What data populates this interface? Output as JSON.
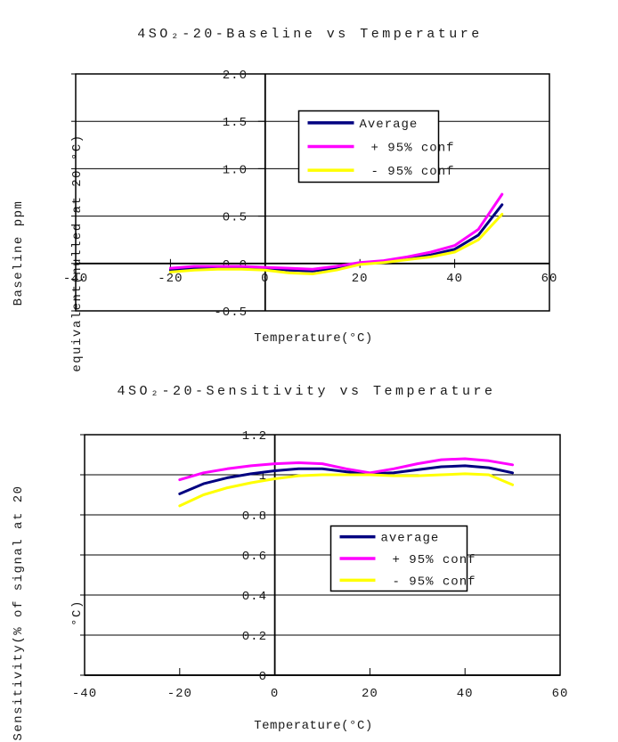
{
  "page": {
    "background": "#ffffff",
    "text_color": "#000000"
  },
  "chart_data": [
    {
      "id": "baseline",
      "type": "line",
      "title": "4SO₂-20-Baseline vs Temperature",
      "xlabel": "Temperature(°C)",
      "ylabel": "Baseline ppm equivalent(nulled at 20 °C)",
      "ylabel_lines": [
        "Baseline ppm",
        "equivalent(nulled at 20 °C)"
      ],
      "xlim": [
        -40,
        60
      ],
      "ylim": [
        -0.5,
        2.0
      ],
      "grid": true,
      "x_ticks": {
        "values": [
          -40,
          -20,
          0,
          20,
          40,
          60
        ],
        "labels": [
          "-40",
          "-20",
          "0",
          "20",
          "40",
          "60"
        ]
      },
      "y_ticks": {
        "values": [
          2.0,
          1.5,
          1.0,
          0.5,
          0.0,
          -0.5
        ],
        "labels": [
          "2.0",
          "1.5",
          "1.0",
          "0.5",
          "0.0",
          "-0.5"
        ]
      },
      "legend": {
        "position": "inside-top-center",
        "entries": [
          "Average",
          "+ 95% conf",
          "- 95% conf"
        ]
      },
      "x": [
        -20,
        -15,
        -10,
        -5,
        0,
        5,
        10,
        15,
        20,
        25,
        30,
        35,
        40,
        45,
        50
      ],
      "series": [
        {
          "name": "Average",
          "color": "#000080",
          "values": [
            -0.07,
            -0.05,
            -0.04,
            -0.04,
            -0.05,
            -0.07,
            -0.08,
            -0.05,
            0.0,
            0.02,
            0.05,
            0.09,
            0.15,
            0.3,
            0.62
          ]
        },
        {
          "name": "+ 95% conf",
          "color": "#ff00ff",
          "values": [
            -0.05,
            -0.03,
            -0.03,
            -0.03,
            -0.04,
            -0.05,
            -0.06,
            -0.03,
            0.01,
            0.03,
            0.07,
            0.12,
            0.19,
            0.36,
            0.73
          ]
        },
        {
          "name": "- 95% conf",
          "color": "#ffff00",
          "values": [
            -0.09,
            -0.07,
            -0.06,
            -0.06,
            -0.07,
            -0.1,
            -0.11,
            -0.07,
            -0.01,
            0.01,
            0.04,
            0.07,
            0.12,
            0.25,
            0.52
          ]
        }
      ]
    },
    {
      "id": "sensitivity",
      "type": "line",
      "title": "4SO₂-20-Sensitivity vs Temperature",
      "xlabel": "Temperature(°C)",
      "ylabel": "Sensitivity(% of signal at 20 °C)",
      "ylabel_lines": [
        "Sensitivity(% of signal at 20",
        "°C)"
      ],
      "xlim": [
        -40,
        60
      ],
      "ylim": [
        0,
        1.2
      ],
      "grid": true,
      "x_ticks": {
        "values": [
          -40,
          -20,
          0,
          20,
          40,
          60
        ],
        "labels": [
          "-40",
          "-20",
          "0",
          "20",
          "40",
          "60"
        ]
      },
      "y_ticks": {
        "values": [
          1.2,
          1.0,
          0.8,
          0.6,
          0.4,
          0.2,
          0.0
        ],
        "labels": [
          "1.2",
          "1",
          "0.8",
          "0.6",
          "0.4",
          "0.2",
          "0"
        ]
      },
      "legend": {
        "position": "inside-bottom-center",
        "entries": [
          "average",
          "+ 95% conf",
          "- 95% conf"
        ]
      },
      "x": [
        -20,
        -15,
        -10,
        -5,
        0,
        5,
        10,
        15,
        20,
        25,
        30,
        35,
        40,
        45,
        50
      ],
      "series": [
        {
          "name": "average",
          "color": "#000080",
          "values": [
            0.905,
            0.955,
            0.985,
            1.005,
            1.02,
            1.03,
            1.03,
            1.015,
            1.005,
            1.01,
            1.025,
            1.04,
            1.045,
            1.035,
            1.01
          ]
        },
        {
          "name": "+ 95% conf",
          "color": "#ff00ff",
          "values": [
            0.975,
            1.01,
            1.03,
            1.045,
            1.055,
            1.06,
            1.055,
            1.03,
            1.01,
            1.03,
            1.055,
            1.075,
            1.08,
            1.07,
            1.05
          ]
        },
        {
          "name": "- 95% conf",
          "color": "#ffff00",
          "values": [
            0.845,
            0.9,
            0.935,
            0.96,
            0.98,
            0.995,
            1.0,
            1.0,
            1.0,
            0.995,
            0.995,
            1.0,
            1.005,
            1.0,
            0.95
          ]
        }
      ]
    }
  ]
}
